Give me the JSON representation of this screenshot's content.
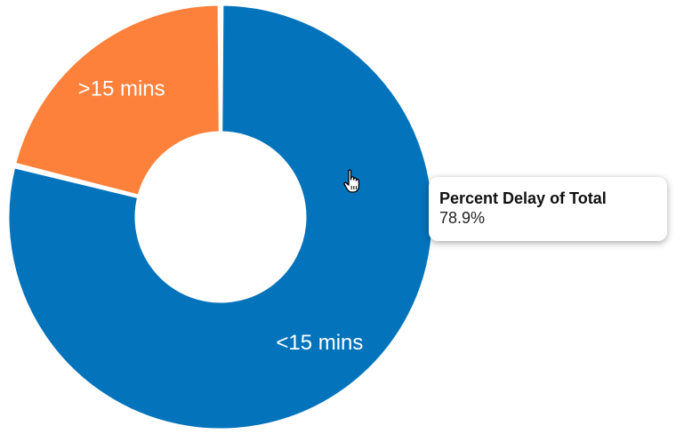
{
  "chart_data": {
    "type": "pie",
    "donut": true,
    "categories": [
      "<15 mins",
      ">15 mins"
    ],
    "values": [
      78.9,
      21.1
    ],
    "colors": [
      "#0373bb",
      "#fd813a"
    ],
    "title": "",
    "xlabel": "",
    "ylabel": ""
  },
  "tooltip": {
    "title": "Percent Delay of Total",
    "value": "78.9%"
  },
  "cursor": {
    "icon": "hand-pointer-icon"
  }
}
